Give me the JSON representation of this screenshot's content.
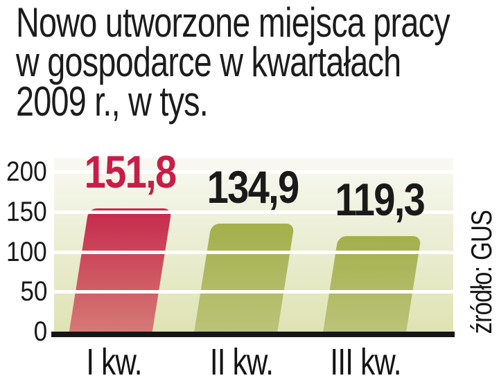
{
  "title": {
    "lines": [
      "Nowo utworzone miejsca pracy",
      "w gospodarce w kwartałach",
      "2009 r., w tys."
    ],
    "text": "Nowo utworzone miejsca pracy w gospodarce w kwartałach 2009 r., w tys."
  },
  "source_label": "źródło: GUS",
  "chart_data": {
    "type": "bar",
    "title": "Nowo utworzone miejsca pracy w gospodarce w kwartałach 2009 r., w tys.",
    "categories": [
      "I kw.",
      "II kw.",
      "III kw."
    ],
    "values": [
      151.8,
      134.9,
      119.3
    ],
    "value_labels": [
      "151,8",
      "134,9",
      "119,3"
    ],
    "xlabel": "",
    "ylabel": "",
    "ylim": [
      0,
      200
    ],
    "yticks": [
      0,
      50,
      100,
      150,
      200
    ],
    "ytick_labels": [
      "0",
      "50",
      "100",
      "150",
      "200"
    ],
    "grid": true,
    "gridline_color": "#ffffff",
    "legend_position": "none",
    "source": "źródło: GUS",
    "highlighted_category": "I kw.",
    "highlighted_index": 0,
    "bar_colors_top": [
      "#c6294b",
      "#a3b04b",
      "#a3b04b"
    ],
    "bar_colors_bottom": [
      "#d57975",
      "#bbc378",
      "#bbc378"
    ],
    "value_label_colors": [
      "#c81d48",
      "#1a1a1a",
      "#1a1a1a"
    ]
  },
  "colors": {
    "accent_red": "#c6294b",
    "olive_green": "#a3b04b",
    "plot_bg_top": "#f9f9f3",
    "plot_bg_bottom": "#dfe3b3",
    "axis_line": "#161616",
    "text": "#1a1a1a"
  }
}
